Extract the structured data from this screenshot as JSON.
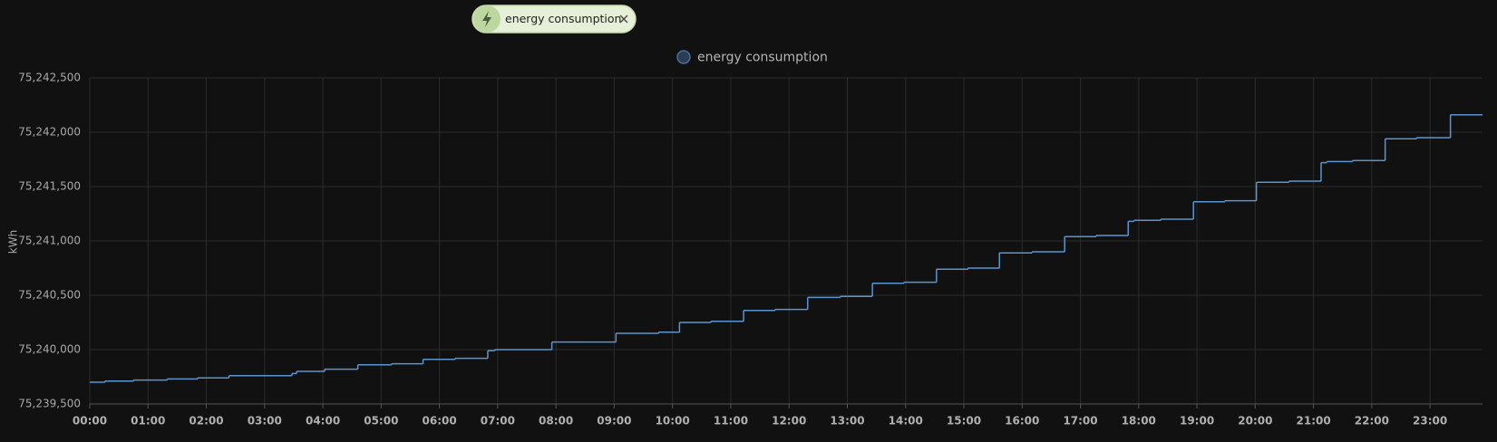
{
  "chip": {
    "label": "energy consumption"
  },
  "chart_data": {
    "type": "line",
    "step": "after",
    "ylabel": "kWh",
    "x": [
      0,
      0.26,
      0.75,
      1.33,
      1.85,
      2.39,
      3.47,
      3.55,
      4.03,
      4.6,
      5.18,
      5.72,
      6.27,
      6.83,
      6.95,
      7.93,
      9.03,
      9.76,
      10.12,
      10.66,
      11.22,
      11.76,
      12.32,
      12.88,
      13.43,
      13.97,
      14.53,
      15.07,
      15.61,
      16.17,
      16.73,
      17.27,
      17.82,
      17.92,
      18.38,
      18.94,
      19.48,
      20.02,
      20.58,
      21.13,
      21.23,
      21.67,
      22.23,
      22.77,
      23.35
    ],
    "series": [
      {
        "name": "energy consumption",
        "color": "#5b95cf",
        "values": [
          75239700,
          75239710,
          75239720,
          75239730,
          75239740,
          75239760,
          75239780,
          75239800,
          75239820,
          75239860,
          75239870,
          75239910,
          75239920,
          75239990,
          75240000,
          75240070,
          75240150,
          75240160,
          75240250,
          75240260,
          75240360,
          75240370,
          75240480,
          75240490,
          75240610,
          75240620,
          75240740,
          75240750,
          75240890,
          75240900,
          75241040,
          75241050,
          75241180,
          75241190,
          75241200,
          75241360,
          75241370,
          75241540,
          75241550,
          75241720,
          75241730,
          75241740,
          75241940,
          75241950,
          75242160
        ]
      }
    ],
    "xlim": [
      0,
      23.9
    ],
    "xticks": [
      {
        "value": 0,
        "label": "00:00"
      },
      {
        "value": 1,
        "label": "01:00"
      },
      {
        "value": 2,
        "label": "02:00"
      },
      {
        "value": 3,
        "label": "03:00"
      },
      {
        "value": 4,
        "label": "04:00"
      },
      {
        "value": 5,
        "label": "05:00"
      },
      {
        "value": 6,
        "label": "06:00"
      },
      {
        "value": 7,
        "label": "07:00"
      },
      {
        "value": 8,
        "label": "08:00"
      },
      {
        "value": 9,
        "label": "09:00"
      },
      {
        "value": 10,
        "label": "10:00"
      },
      {
        "value": 11,
        "label": "11:00"
      },
      {
        "value": 12,
        "label": "12:00"
      },
      {
        "value": 13,
        "label": "13:00"
      },
      {
        "value": 14,
        "label": "14:00"
      },
      {
        "value": 15,
        "label": "15:00"
      },
      {
        "value": 16,
        "label": "16:00"
      },
      {
        "value": 17,
        "label": "17:00"
      },
      {
        "value": 18,
        "label": "18:00"
      },
      {
        "value": 19,
        "label": "19:00"
      },
      {
        "value": 20,
        "label": "20:00"
      },
      {
        "value": 21,
        "label": "21:00"
      },
      {
        "value": 22,
        "label": "22:00"
      },
      {
        "value": 23,
        "label": "23:00"
      }
    ],
    "ylim": [
      75239500,
      75242500
    ],
    "yticks": [
      {
        "value": 75239500,
        "label": "75,239,500"
      },
      {
        "value": 75240000,
        "label": "75,240,000"
      },
      {
        "value": 75240500,
        "label": "75,240,500"
      },
      {
        "value": 75241000,
        "label": "75,241,000"
      },
      {
        "value": 75241500,
        "label": "75,241,500"
      },
      {
        "value": 75242000,
        "label": "75,242,000"
      },
      {
        "value": 75242500,
        "label": "75,242,500"
      }
    ],
    "grid": true
  }
}
